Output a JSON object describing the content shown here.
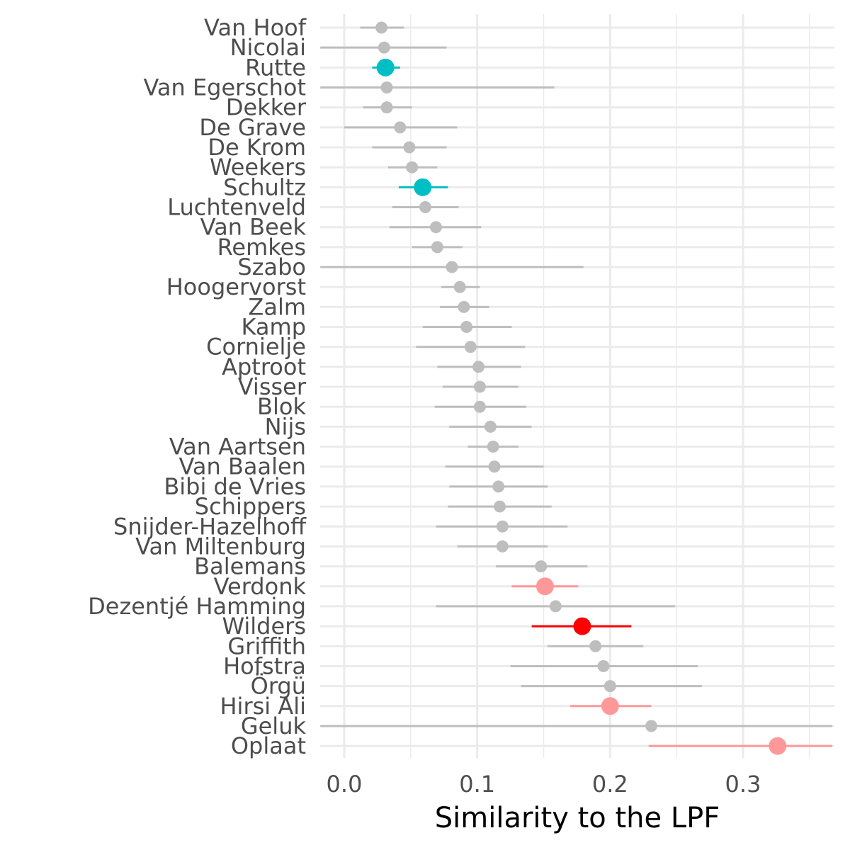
{
  "chart_data": {
    "type": "scatter",
    "xlabel": "Similarity to the LPF",
    "ylabel": "",
    "xlim": [
      -0.018,
      0.367
    ],
    "x_ticks": [
      "0.0",
      "0.1",
      "0.2",
      "0.3"
    ],
    "x_tick_values": [
      0.0,
      0.1,
      0.2,
      0.3
    ],
    "grid": true,
    "colors": {
      "grey": "#bebebe",
      "teal": "#00bfc4",
      "red": "#ff0000",
      "pink": "#ff9999"
    },
    "points": [
      {
        "name": "Van Hoof",
        "value": 0.028,
        "low": 0.012,
        "high": 0.045,
        "color": "grey",
        "highlight": false
      },
      {
        "name": "Nicolai",
        "value": 0.03,
        "low": -0.018,
        "high": 0.077,
        "color": "grey",
        "highlight": false
      },
      {
        "name": "Rutte",
        "value": 0.031,
        "low": 0.021,
        "high": 0.042,
        "color": "teal",
        "highlight": true
      },
      {
        "name": "Van Egerschot",
        "value": 0.032,
        "low": -0.018,
        "high": 0.158,
        "color": "grey",
        "highlight": false
      },
      {
        "name": "Dekker",
        "value": 0.032,
        "low": 0.014,
        "high": 0.051,
        "color": "grey",
        "highlight": false
      },
      {
        "name": "De Grave",
        "value": 0.042,
        "low": 0.0,
        "high": 0.085,
        "color": "grey",
        "highlight": false
      },
      {
        "name": "De Krom",
        "value": 0.049,
        "low": 0.021,
        "high": 0.077,
        "color": "grey",
        "highlight": false
      },
      {
        "name": "Weekers",
        "value": 0.051,
        "low": 0.033,
        "high": 0.07,
        "color": "grey",
        "highlight": false
      },
      {
        "name": "Schultz",
        "value": 0.059,
        "low": 0.041,
        "high": 0.078,
        "color": "teal",
        "highlight": true
      },
      {
        "name": "Luchtenveld",
        "value": 0.061,
        "low": 0.036,
        "high": 0.086,
        "color": "grey",
        "highlight": false
      },
      {
        "name": "Van Beek",
        "value": 0.069,
        "low": 0.034,
        "high": 0.103,
        "color": "grey",
        "highlight": false
      },
      {
        "name": "Remkes",
        "value": 0.07,
        "low": 0.051,
        "high": 0.089,
        "color": "grey",
        "highlight": false
      },
      {
        "name": "Szabo",
        "value": 0.081,
        "low": -0.018,
        "high": 0.18,
        "color": "grey",
        "highlight": false
      },
      {
        "name": "Hoogervorst",
        "value": 0.087,
        "low": 0.073,
        "high": 0.102,
        "color": "grey",
        "highlight": false
      },
      {
        "name": "Zalm",
        "value": 0.09,
        "low": 0.072,
        "high": 0.109,
        "color": "grey",
        "highlight": false
      },
      {
        "name": "Kamp",
        "value": 0.092,
        "low": 0.059,
        "high": 0.126,
        "color": "grey",
        "highlight": false
      },
      {
        "name": "Cornielje",
        "value": 0.095,
        "low": 0.054,
        "high": 0.136,
        "color": "grey",
        "highlight": false
      },
      {
        "name": "Aptroot",
        "value": 0.101,
        "low": 0.07,
        "high": 0.133,
        "color": "grey",
        "highlight": false
      },
      {
        "name": "Visser",
        "value": 0.102,
        "low": 0.074,
        "high": 0.131,
        "color": "grey",
        "highlight": false
      },
      {
        "name": "Blok",
        "value": 0.102,
        "low": 0.068,
        "high": 0.137,
        "color": "grey",
        "highlight": false
      },
      {
        "name": "Nijs",
        "value": 0.11,
        "low": 0.079,
        "high": 0.141,
        "color": "grey",
        "highlight": false
      },
      {
        "name": "Van Aartsen",
        "value": 0.112,
        "low": 0.093,
        "high": 0.131,
        "color": "grey",
        "highlight": false
      },
      {
        "name": "Van Baalen",
        "value": 0.113,
        "low": 0.076,
        "high": 0.15,
        "color": "grey",
        "highlight": false
      },
      {
        "name": "Bibi de Vries",
        "value": 0.116,
        "low": 0.079,
        "high": 0.153,
        "color": "grey",
        "highlight": false
      },
      {
        "name": "Schippers",
        "value": 0.117,
        "low": 0.078,
        "high": 0.156,
        "color": "grey",
        "highlight": false
      },
      {
        "name": "Snijder-Hazelhoff",
        "value": 0.119,
        "low": 0.069,
        "high": 0.168,
        "color": "grey",
        "highlight": false
      },
      {
        "name": "Van Miltenburg",
        "value": 0.119,
        "low": 0.085,
        "high": 0.153,
        "color": "grey",
        "highlight": false
      },
      {
        "name": "Balemans",
        "value": 0.148,
        "low": 0.114,
        "high": 0.183,
        "color": "grey",
        "highlight": false
      },
      {
        "name": "Verdonk",
        "value": 0.151,
        "low": 0.126,
        "high": 0.176,
        "color": "pink",
        "highlight": true
      },
      {
        "name": "Dezentjé Hamming",
        "value": 0.159,
        "low": 0.069,
        "high": 0.249,
        "color": "grey",
        "highlight": false
      },
      {
        "name": "Wilders",
        "value": 0.179,
        "low": 0.141,
        "high": 0.216,
        "color": "red",
        "highlight": true
      },
      {
        "name": "Griffith",
        "value": 0.189,
        "low": 0.153,
        "high": 0.225,
        "color": "grey",
        "highlight": false
      },
      {
        "name": "Hofstra",
        "value": 0.195,
        "low": 0.125,
        "high": 0.266,
        "color": "grey",
        "highlight": false
      },
      {
        "name": "Örgü",
        "value": 0.2,
        "low": 0.133,
        "high": 0.269,
        "color": "grey",
        "highlight": false
      },
      {
        "name": "Hirsi Ali",
        "value": 0.2,
        "low": 0.17,
        "high": 0.231,
        "color": "pink",
        "highlight": true
      },
      {
        "name": "Geluk",
        "value": 0.231,
        "low": -0.018,
        "high": 0.367,
        "color": "grey",
        "highlight": false
      },
      {
        "name": "Oplaat",
        "value": 0.326,
        "low": 0.229,
        "high": 0.367,
        "color": "pink",
        "highlight": true
      }
    ]
  }
}
